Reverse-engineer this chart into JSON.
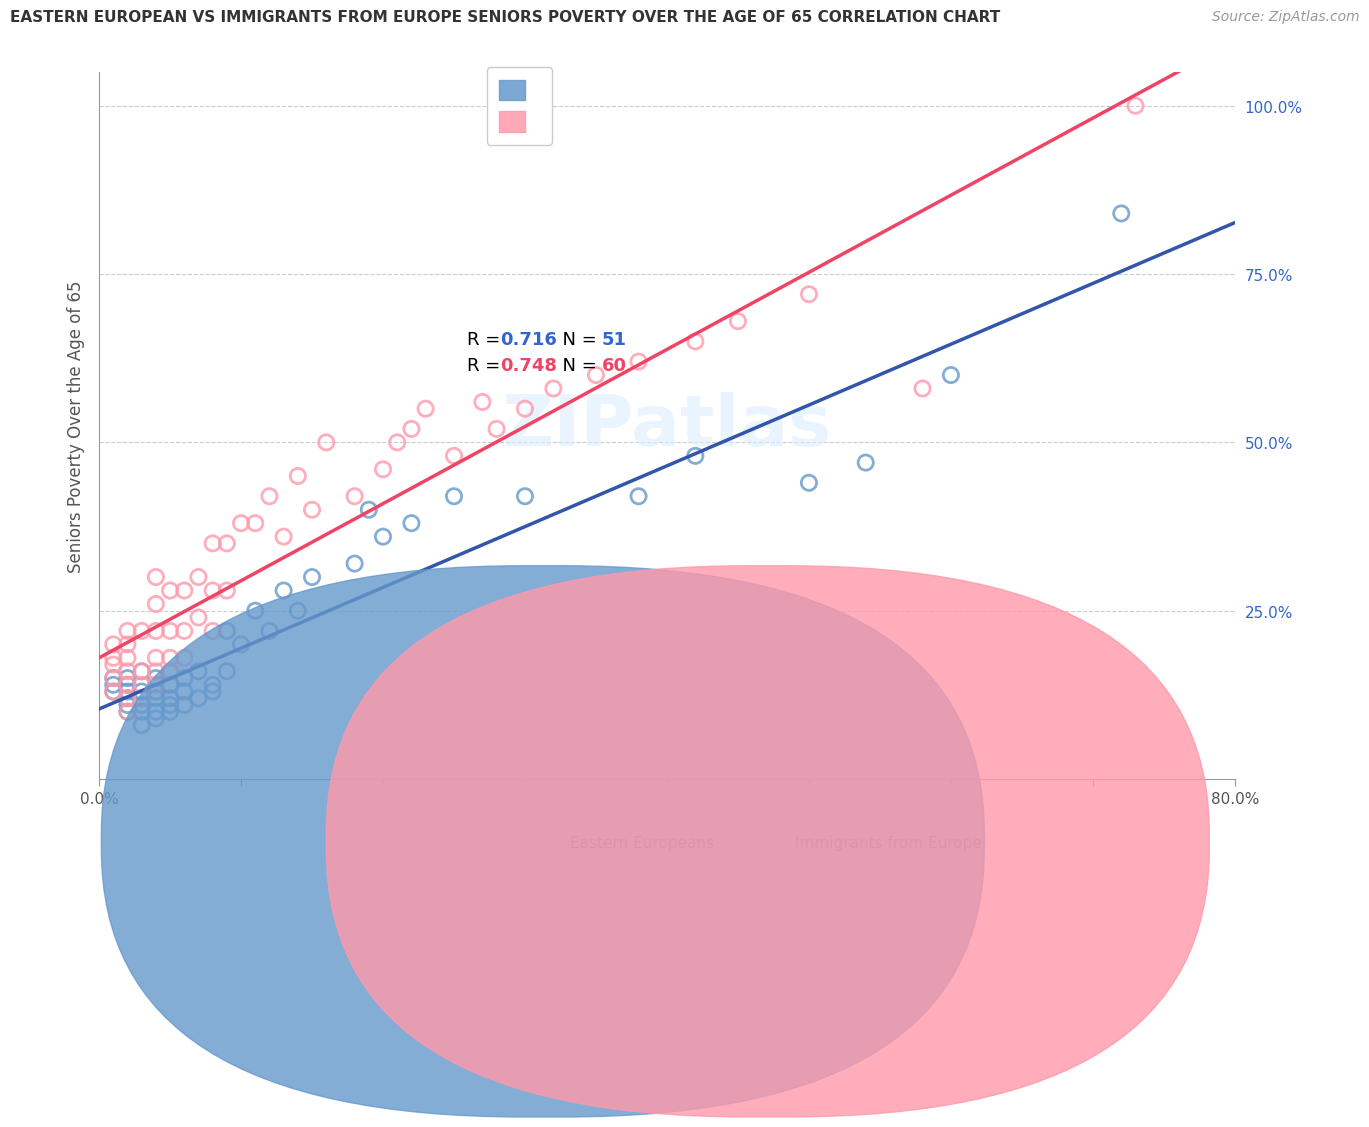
{
  "title": "EASTERN EUROPEAN VS IMMIGRANTS FROM EUROPE SENIORS POVERTY OVER THE AGE OF 65 CORRELATION CHART",
  "source": "Source: ZipAtlas.com",
  "ylabel": "Seniors Poverty Over the Age of 65",
  "xlim": [
    0,
    0.8
  ],
  "ylim": [
    0,
    1.05
  ],
  "xticks": [
    0.0,
    0.1,
    0.2,
    0.3,
    0.4,
    0.5,
    0.6,
    0.7,
    0.8
  ],
  "xticklabels": [
    "0.0%",
    "",
    "",
    "",
    "",
    "",
    "",
    "",
    "80.0%"
  ],
  "ytick_positions": [
    0.0,
    0.25,
    0.5,
    0.75,
    1.0
  ],
  "yticklabels": [
    "",
    "25.0%",
    "50.0%",
    "75.0%",
    "100.0%"
  ],
  "blue_color": "#6699CC",
  "pink_color": "#FF99AA",
  "blue_line_color": "#3355AA",
  "pink_line_color": "#EE4466",
  "blue_R": 0.716,
  "blue_N": 51,
  "pink_R": 0.748,
  "pink_N": 60,
  "blue_scatter_x": [
    0.01,
    0.01,
    0.01,
    0.02,
    0.02,
    0.02,
    0.02,
    0.02,
    0.02,
    0.03,
    0.03,
    0.03,
    0.03,
    0.03,
    0.03,
    0.04,
    0.04,
    0.04,
    0.04,
    0.04,
    0.05,
    0.05,
    0.05,
    0.05,
    0.06,
    0.06,
    0.06,
    0.07,
    0.07,
    0.08,
    0.08,
    0.09,
    0.09,
    0.1,
    0.11,
    0.12,
    0.13,
    0.14,
    0.15,
    0.18,
    0.19,
    0.2,
    0.22,
    0.25,
    0.3,
    0.38,
    0.42,
    0.5,
    0.54,
    0.6,
    0.72
  ],
  "blue_scatter_y": [
    0.13,
    0.14,
    0.15,
    0.1,
    0.11,
    0.12,
    0.13,
    0.14,
    0.15,
    0.08,
    0.1,
    0.11,
    0.12,
    0.13,
    0.16,
    0.09,
    0.1,
    0.12,
    0.13,
    0.15,
    0.1,
    0.11,
    0.12,
    0.14,
    0.11,
    0.13,
    0.15,
    0.12,
    0.16,
    0.13,
    0.14,
    0.16,
    0.22,
    0.2,
    0.25,
    0.22,
    0.28,
    0.25,
    0.3,
    0.32,
    0.4,
    0.36,
    0.38,
    0.42,
    0.42,
    0.42,
    0.48,
    0.44,
    0.47,
    0.6,
    0.84
  ],
  "pink_scatter_x": [
    0.01,
    0.01,
    0.01,
    0.01,
    0.01,
    0.02,
    0.02,
    0.02,
    0.02,
    0.02,
    0.02,
    0.02,
    0.03,
    0.03,
    0.03,
    0.03,
    0.04,
    0.04,
    0.04,
    0.04,
    0.04,
    0.04,
    0.05,
    0.05,
    0.05,
    0.05,
    0.06,
    0.06,
    0.06,
    0.07,
    0.07,
    0.08,
    0.08,
    0.08,
    0.09,
    0.09,
    0.1,
    0.11,
    0.12,
    0.13,
    0.14,
    0.15,
    0.16,
    0.18,
    0.2,
    0.21,
    0.22,
    0.23,
    0.25,
    0.27,
    0.28,
    0.3,
    0.32,
    0.35,
    0.38,
    0.42,
    0.45,
    0.5,
    0.58,
    0.73
  ],
  "pink_scatter_y": [
    0.13,
    0.15,
    0.17,
    0.18,
    0.2,
    0.1,
    0.12,
    0.14,
    0.16,
    0.18,
    0.2,
    0.22,
    0.12,
    0.14,
    0.16,
    0.22,
    0.14,
    0.16,
    0.18,
    0.22,
    0.26,
    0.3,
    0.16,
    0.18,
    0.22,
    0.28,
    0.18,
    0.22,
    0.28,
    0.24,
    0.3,
    0.22,
    0.28,
    0.35,
    0.28,
    0.35,
    0.38,
    0.38,
    0.42,
    0.36,
    0.45,
    0.4,
    0.5,
    0.42,
    0.46,
    0.5,
    0.52,
    0.55,
    0.48,
    0.56,
    0.52,
    0.55,
    0.58,
    0.6,
    0.62,
    0.65,
    0.68,
    0.72,
    0.58,
    1.0
  ],
  "watermark": "ZIPatlas",
  "blue_label": "Eastern Europeans",
  "pink_label": "Immigrants from Europe",
  "legend_R_label": "R = ",
  "legend_N_label": "  N = ",
  "blue_R_str": "0.716",
  "blue_N_str": "51",
  "pink_R_str": "0.748",
  "pink_N_str": "60",
  "title_color": "#333333",
  "source_color": "#999999",
  "ylabel_color": "#555555",
  "ytick_color": "#3366CC",
  "grid_color": "#CCCCCC",
  "spine_color": "#999999",
  "watermark_color": "#DDEEFF"
}
